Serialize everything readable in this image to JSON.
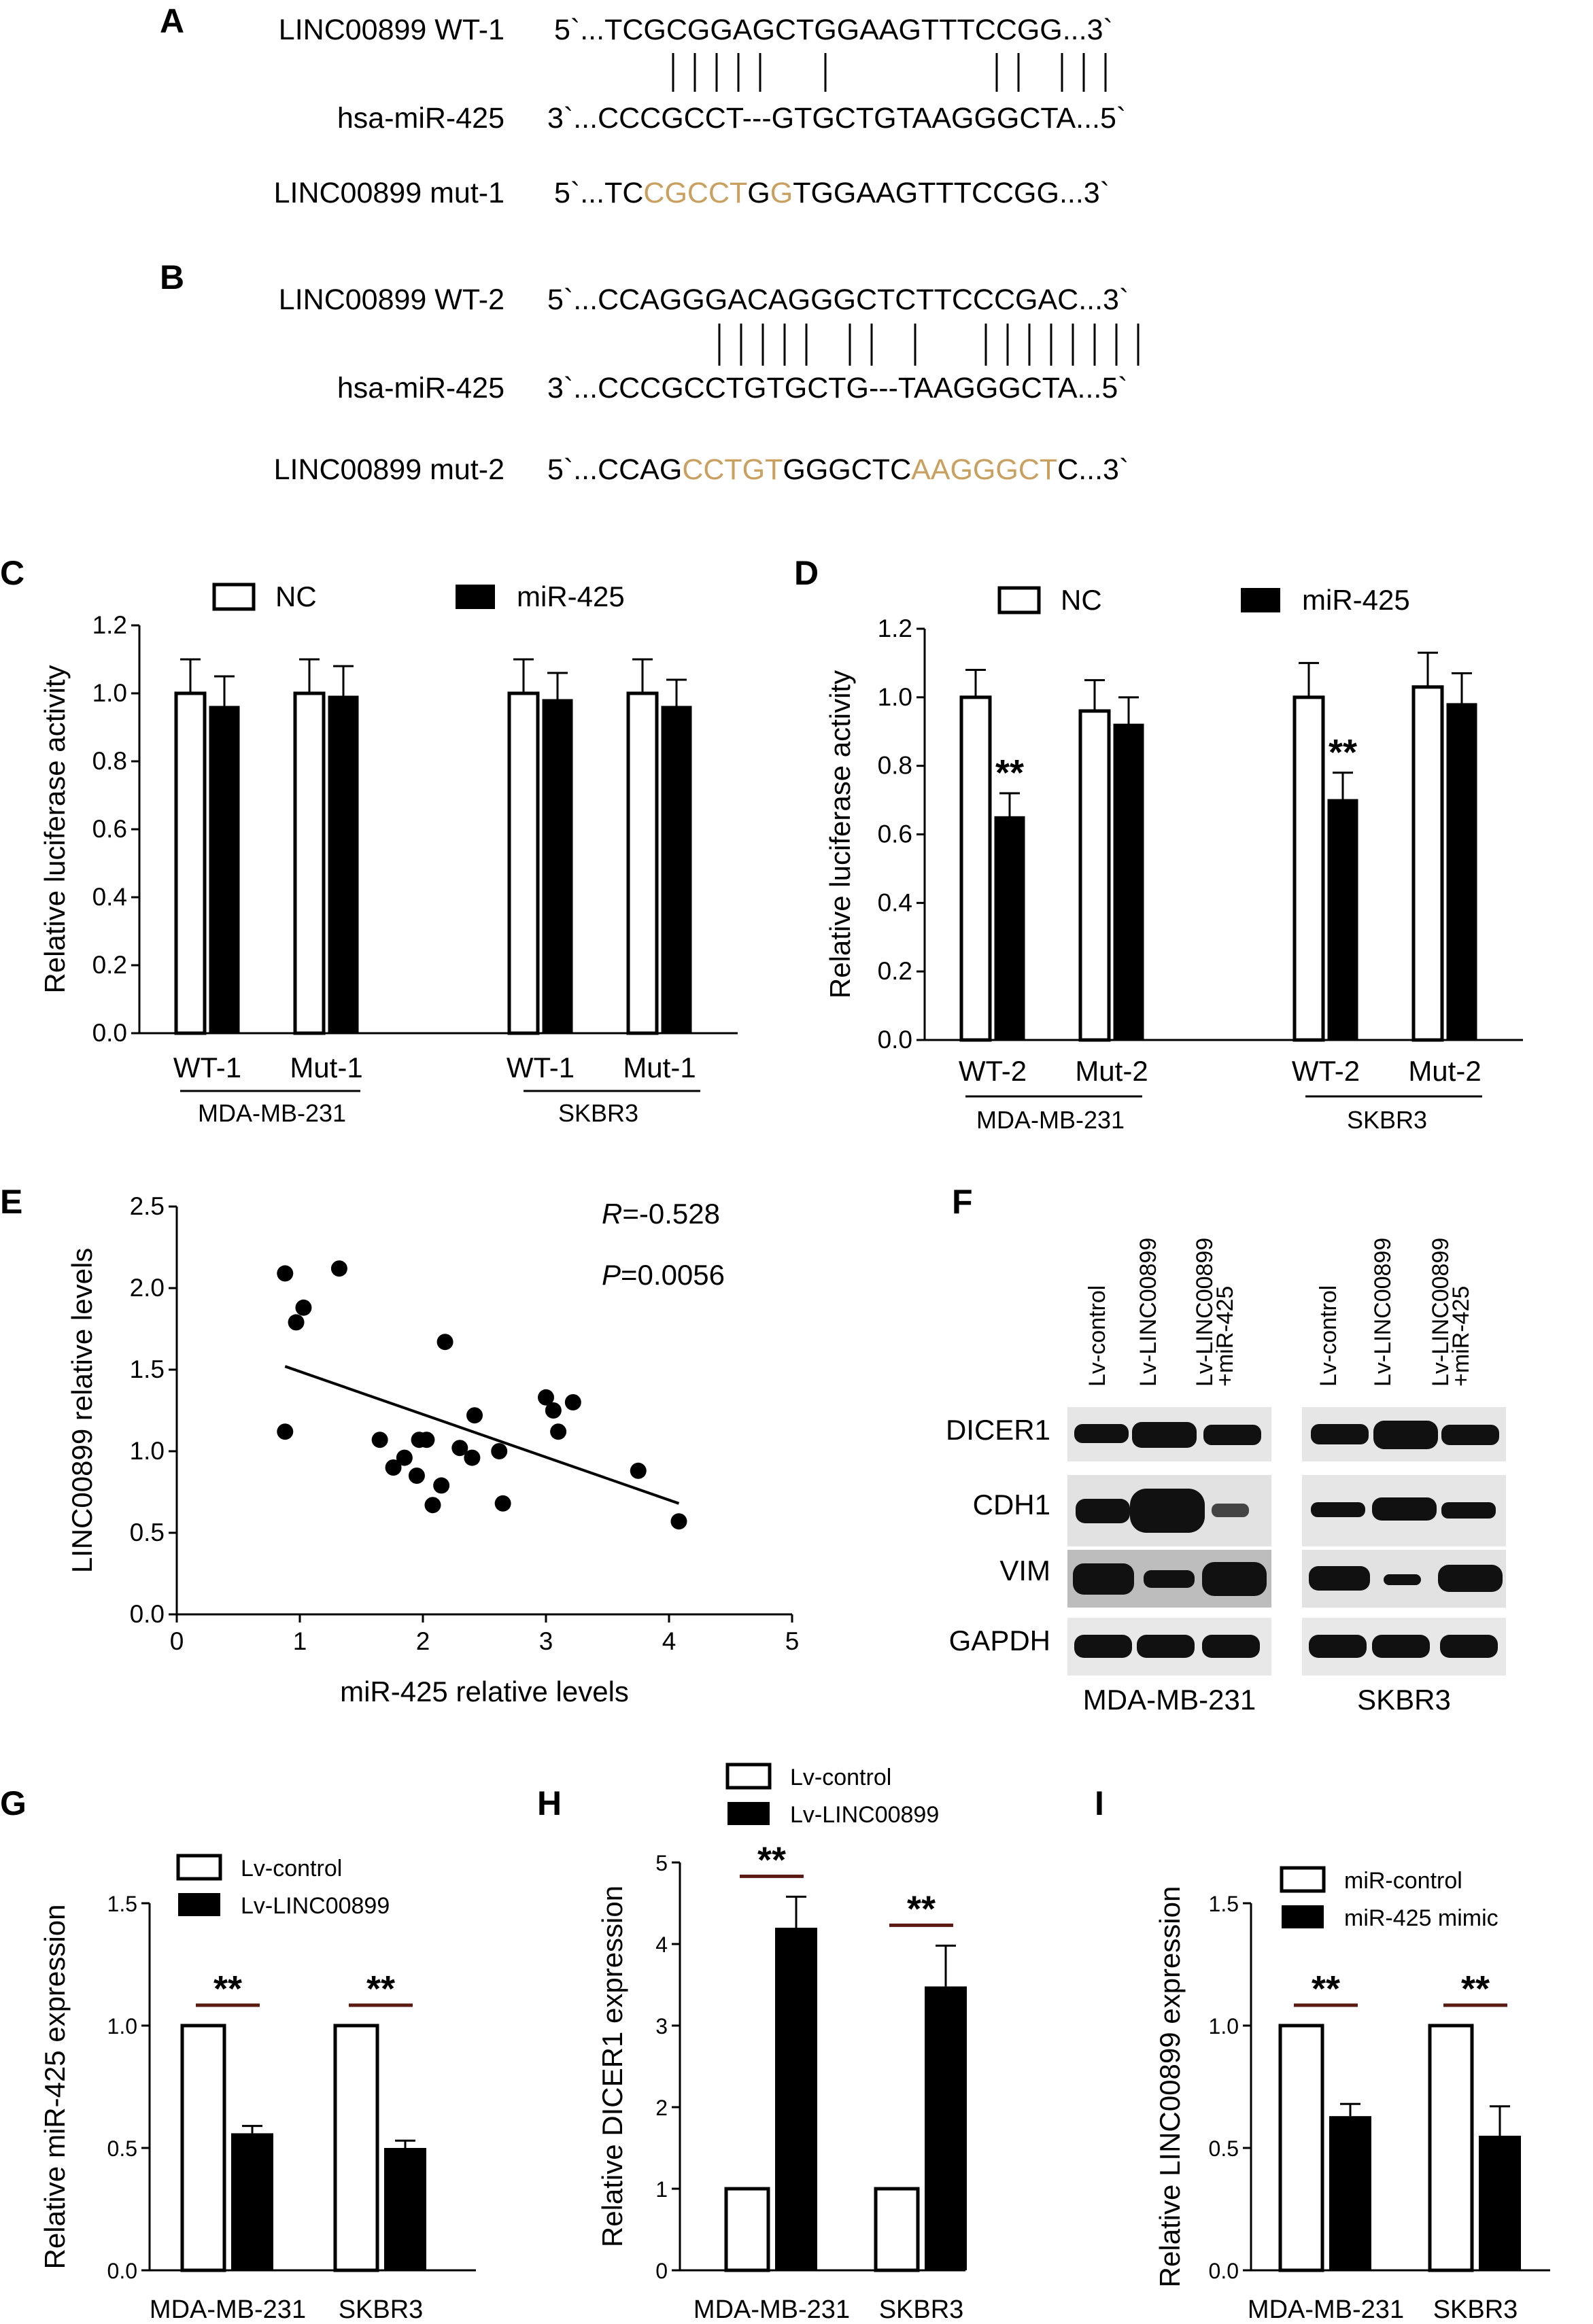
{
  "panels": {
    "A": {
      "letter": "A",
      "wt_name": "LINC00899 WT-1",
      "wt_seq": "5`...TCGCGGAGCTGGAAGTTTCCGG...3`",
      "mir_name": "hsa-miR-425",
      "mir_seq": "3`...CCCGCCT---GTGCTGTAAGGGCTA...5`",
      "mut_name": "LINC00899 mut-1",
      "mut_seq_parts": [
        "5`...TC",
        "CGCCT",
        "G",
        "G",
        "TGGAAGTTTCCGG...3`"
      ]
    },
    "B": {
      "letter": "B",
      "wt_name": "LINC00899 WT-2",
      "wt_seq": "5`...CCAGGGACAGGGCTCTTCCCGAC...3`",
      "mir_name": "hsa-miR-425",
      "mir_seq": "3`...CCCGCCTGTGCTG---TAAGGGCTA...5`",
      "mut_name": "LINC00899 mut-2",
      "mut_seq_parts": [
        "5`...CCAG",
        "CCTGT",
        "GGGCTC",
        "AAGGGCT",
        "C...3`"
      ]
    },
    "C": {
      "letter": "C"
    },
    "D": {
      "letter": "D"
    },
    "E": {
      "letter": "E"
    },
    "F": {
      "letter": "F"
    },
    "G": {
      "letter": "G"
    },
    "H": {
      "letter": "H"
    },
    "I": {
      "letter": "I"
    }
  },
  "colors": {
    "mutation": "#c8a060",
    "bar_fill": "#000000",
    "sig_line": "#5a1a12"
  },
  "western": {
    "lanes": [
      "Lv-control",
      "Lv-LINC00899",
      "Lv-LINC00899",
      "+miR-425"
    ],
    "proteins": [
      "DICER1",
      "CDH1",
      "VIM",
      "GAPDH"
    ],
    "cells": [
      "MDA-MB-231",
      "SKBR3"
    ]
  },
  "chart_data": [
    {
      "panel": "C",
      "type": "bar",
      "ylabel": "Relative luciferase activity",
      "ylim": [
        0,
        1.2
      ],
      "yticks": [
        "0.0",
        "0.2",
        "0.4",
        "0.6",
        "0.8",
        "1.0",
        "1.2"
      ],
      "legend": [
        "NC",
        "miR-425"
      ],
      "groups": [
        {
          "label": "WT-1",
          "cell": "MDA-MB-231",
          "NC": 1.0,
          "NC_err": 0.1,
          "miR": 0.96,
          "miR_err": 0.09
        },
        {
          "label": "Mut-1",
          "cell": "MDA-MB-231",
          "NC": 1.0,
          "NC_err": 0.1,
          "miR": 0.99,
          "miR_err": 0.09
        },
        {
          "label": "WT-1",
          "cell": "SKBR3",
          "NC": 1.0,
          "NC_err": 0.1,
          "miR": 0.98,
          "miR_err": 0.08
        },
        {
          "label": "Mut-1",
          "cell": "SKBR3",
          "NC": 1.0,
          "NC_err": 0.1,
          "miR": 0.96,
          "miR_err": 0.08
        }
      ],
      "cell_labels": [
        "MDA-MB-231",
        "SKBR3"
      ]
    },
    {
      "panel": "D",
      "type": "bar",
      "ylabel": "Relative luciferase activity",
      "ylim": [
        0,
        1.2
      ],
      "yticks": [
        "0.0",
        "0.2",
        "0.4",
        "0.6",
        "0.8",
        "1.0",
        "1.2"
      ],
      "legend": [
        "NC",
        "miR-425"
      ],
      "groups": [
        {
          "label": "WT-2",
          "cell": "MDA-MB-231",
          "NC": 1.0,
          "NC_err": 0.08,
          "miR": 0.65,
          "miR_err": 0.07,
          "sig": "**"
        },
        {
          "label": "Mut-2",
          "cell": "MDA-MB-231",
          "NC": 0.96,
          "NC_err": 0.09,
          "miR": 0.92,
          "miR_err": 0.08
        },
        {
          "label": "WT-2",
          "cell": "SKBR3",
          "NC": 1.0,
          "NC_err": 0.1,
          "miR": 0.7,
          "miR_err": 0.08,
          "sig": "**"
        },
        {
          "label": "Mut-2",
          "cell": "SKBR3",
          "NC": 1.03,
          "NC_err": 0.1,
          "miR": 0.98,
          "miR_err": 0.09
        }
      ],
      "cell_labels": [
        "MDA-MB-231",
        "SKBR3"
      ]
    },
    {
      "panel": "E",
      "type": "scatter",
      "xlabel": "miR-425 relative levels",
      "ylabel": "LINC00899 relative levels",
      "xlim": [
        0,
        5
      ],
      "ylim": [
        0,
        2.5
      ],
      "xticks": [
        "0",
        "1",
        "2",
        "3",
        "4",
        "5"
      ],
      "yticks": [
        "0.0",
        "0.5",
        "1.0",
        "1.5",
        "2.0",
        "2.5"
      ],
      "r_label": "R",
      "r_value": "=-0.528",
      "p_label": "P",
      "p_value": "=0.0056",
      "points": [
        [
          0.88,
          2.09
        ],
        [
          0.97,
          1.79
        ],
        [
          1.03,
          1.88
        ],
        [
          1.32,
          2.12
        ],
        [
          0.88,
          1.12
        ],
        [
          1.65,
          1.07
        ],
        [
          1.76,
          0.9
        ],
        [
          1.85,
          0.96
        ],
        [
          1.95,
          0.85
        ],
        [
          1.97,
          1.07
        ],
        [
          2.03,
          1.07
        ],
        [
          2.08,
          0.67
        ],
        [
          2.15,
          0.79
        ],
        [
          2.18,
          1.67
        ],
        [
          2.3,
          1.02
        ],
        [
          2.4,
          0.96
        ],
        [
          2.42,
          1.22
        ],
        [
          2.62,
          1.0
        ],
        [
          2.65,
          0.68
        ],
        [
          3.0,
          1.33
        ],
        [
          3.06,
          1.25
        ],
        [
          3.1,
          1.12
        ],
        [
          3.22,
          1.3
        ],
        [
          3.75,
          0.88
        ],
        [
          4.08,
          0.57
        ]
      ],
      "fit_line": [
        [
          0.88,
          1.52
        ],
        [
          4.08,
          0.68
        ]
      ]
    },
    {
      "panel": "G",
      "type": "bar",
      "ylabel": "Relative miR-425 expression",
      "ylim": [
        0,
        1.5
      ],
      "yticks": [
        "0.0",
        "0.5",
        "1.0",
        "1.5"
      ],
      "legend": [
        "Lv-control",
        "Lv-LINC00899"
      ],
      "categories": [
        "MDA-MB-231",
        "SKBR3"
      ],
      "control": [
        1.0,
        1.0
      ],
      "treated": [
        0.56,
        0.5
      ],
      "treated_err": [
        0.03,
        0.03
      ],
      "sig": [
        "**",
        "**"
      ]
    },
    {
      "panel": "H",
      "type": "bar",
      "ylabel": "Relative DICER1 expression",
      "ylim": [
        0,
        5
      ],
      "yticks": [
        "0",
        "1",
        "2",
        "3",
        "4",
        "5"
      ],
      "legend": [
        "Lv-control",
        "Lv-LINC00899"
      ],
      "categories": [
        "MDA-MB-231",
        "SKBR3"
      ],
      "control": [
        1.0,
        1.0
      ],
      "treated": [
        4.2,
        3.48
      ],
      "treated_err": [
        0.38,
        0.5
      ],
      "sig": [
        "**",
        "**"
      ]
    },
    {
      "panel": "I",
      "type": "bar",
      "ylabel": "Relative LINC00899 expression",
      "ylim": [
        0,
        1.5
      ],
      "yticks": [
        "0.0",
        "0.5",
        "1.0",
        "1.5"
      ],
      "legend": [
        "miR-control",
        "miR-425 mimic"
      ],
      "categories": [
        "MDA-MB-231",
        "SKBR3"
      ],
      "control": [
        1.0,
        1.0
      ],
      "treated": [
        0.63,
        0.55
      ],
      "treated_err": [
        0.05,
        0.12
      ],
      "sig": [
        "**",
        "**"
      ]
    }
  ]
}
